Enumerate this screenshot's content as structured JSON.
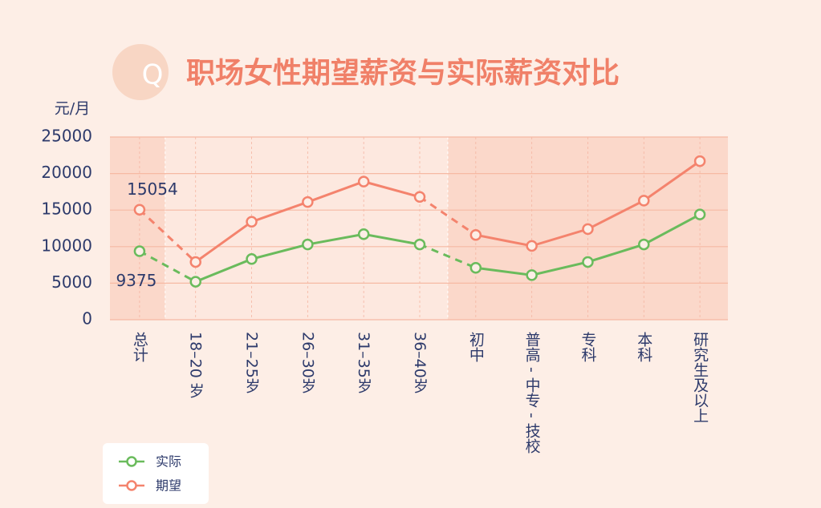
{
  "chart_data": {
    "type": "line",
    "title": "职场女性期望薪资与实际薪资对比",
    "title_icon": "Q",
    "y_label": "元/月",
    "categories": [
      "总计",
      "18–20 岁",
      "21–25岁",
      "26–30岁",
      "31–35岁",
      "36–40岁",
      "初中",
      "普高 - 中专 - 技校",
      "专科",
      "本科",
      "研究生及以上"
    ],
    "series": [
      {
        "name": "实际",
        "color": "#6abb5c",
        "values": [
          9375,
          5200,
          8300,
          10300,
          11700,
          10300,
          7100,
          6100,
          7900,
          10300,
          14400
        ]
      },
      {
        "name": "期望",
        "color": "#f4836d",
        "values": [
          15054,
          7900,
          13400,
          16100,
          18900,
          16800,
          11600,
          10100,
          12400,
          16300,
          21700
        ]
      }
    ],
    "ylim": [
      0,
      25000
    ],
    "yticks": [
      0,
      5000,
      10000,
      15000,
      20000,
      25000
    ],
    "grid": true
  }
}
